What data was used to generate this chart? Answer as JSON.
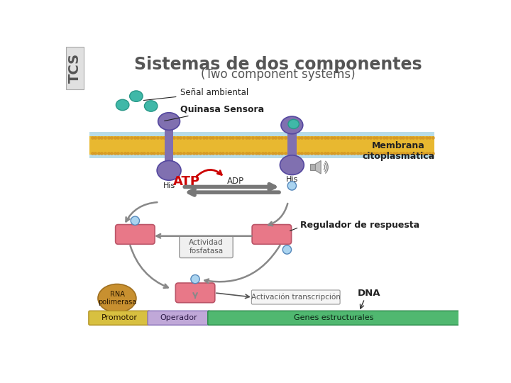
{
  "title_main": "Sistemas de dos componentes",
  "title_sub": "(Two component systems)",
  "title_color": "#555555",
  "tcs_label": "TCS",
  "tcs_bg": "#e0e0e0",
  "bg_color": "#ffffff",
  "membrane_color_top": "#b8dce8",
  "membrane_color_mid": "#e8b830",
  "membrane_color_bot": "#b8dce8",
  "kinase_color": "#8070b0",
  "signal_color": "#40b8a8",
  "response_color": "#e87888",
  "rna_color": "#c89030",
  "promotor_color": "#d8c040",
  "operador_color": "#c0a8d8",
  "genes_color": "#50b870",
  "atp_color": "#cc0000",
  "arrow_gray": "#888888",
  "label_senal": "Señal ambiental",
  "label_quinasa": "Quinasa Sensora",
  "label_membrana": "Membrana\ncitoplasmática",
  "label_atp": "ATP",
  "label_adp": "ADP",
  "label_his": "His",
  "label_p": "P",
  "label_regulador": "Regulador de respuesta",
  "label_actividad": "Actividad\nfosfatasa",
  "label_activacion": "Activación transcripción",
  "label_dna": "DNA",
  "label_rna": "RNA\npolimerasa",
  "label_promotor": "Promotor",
  "label_operador": "Operador",
  "label_genes": "Genes estructurales"
}
